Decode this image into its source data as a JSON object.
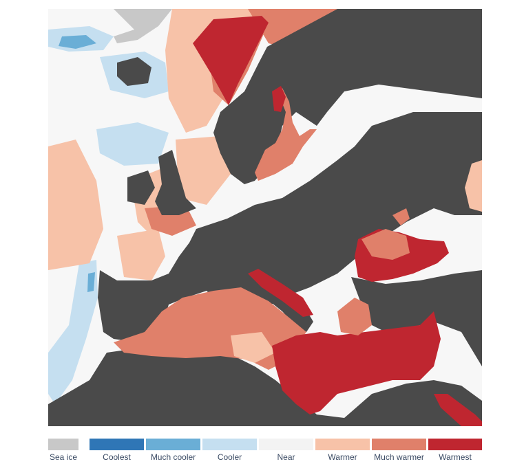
{
  "map": {
    "colors": {
      "land": "#4a4a4a",
      "sea_ice": "#c8c8c8",
      "coolest": "#2f76b6",
      "much_cooler": "#6aaed6",
      "cooler": "#c5dff0",
      "near": "#f7f7f7",
      "warmer": "#f7c2a8",
      "much_warmer": "#e0806a",
      "warmest": "#bf2630"
    }
  },
  "legend": {
    "items": [
      {
        "label": "Sea ice",
        "color": "#c8c8c8"
      },
      {
        "label": "Coolest",
        "color": "#2f76b6"
      },
      {
        "label": "Much cooler",
        "color": "#6aaed6"
      },
      {
        "label": "Cooler",
        "color": "#c5dff0"
      },
      {
        "label": "Near",
        "color": "#f7f7f7"
      },
      {
        "label": "Warmer",
        "color": "#f7c2a8"
      },
      {
        "label": "Much warmer",
        "color": "#e0806a"
      },
      {
        "label": "Warmest",
        "color": "#bf2630"
      }
    ]
  }
}
